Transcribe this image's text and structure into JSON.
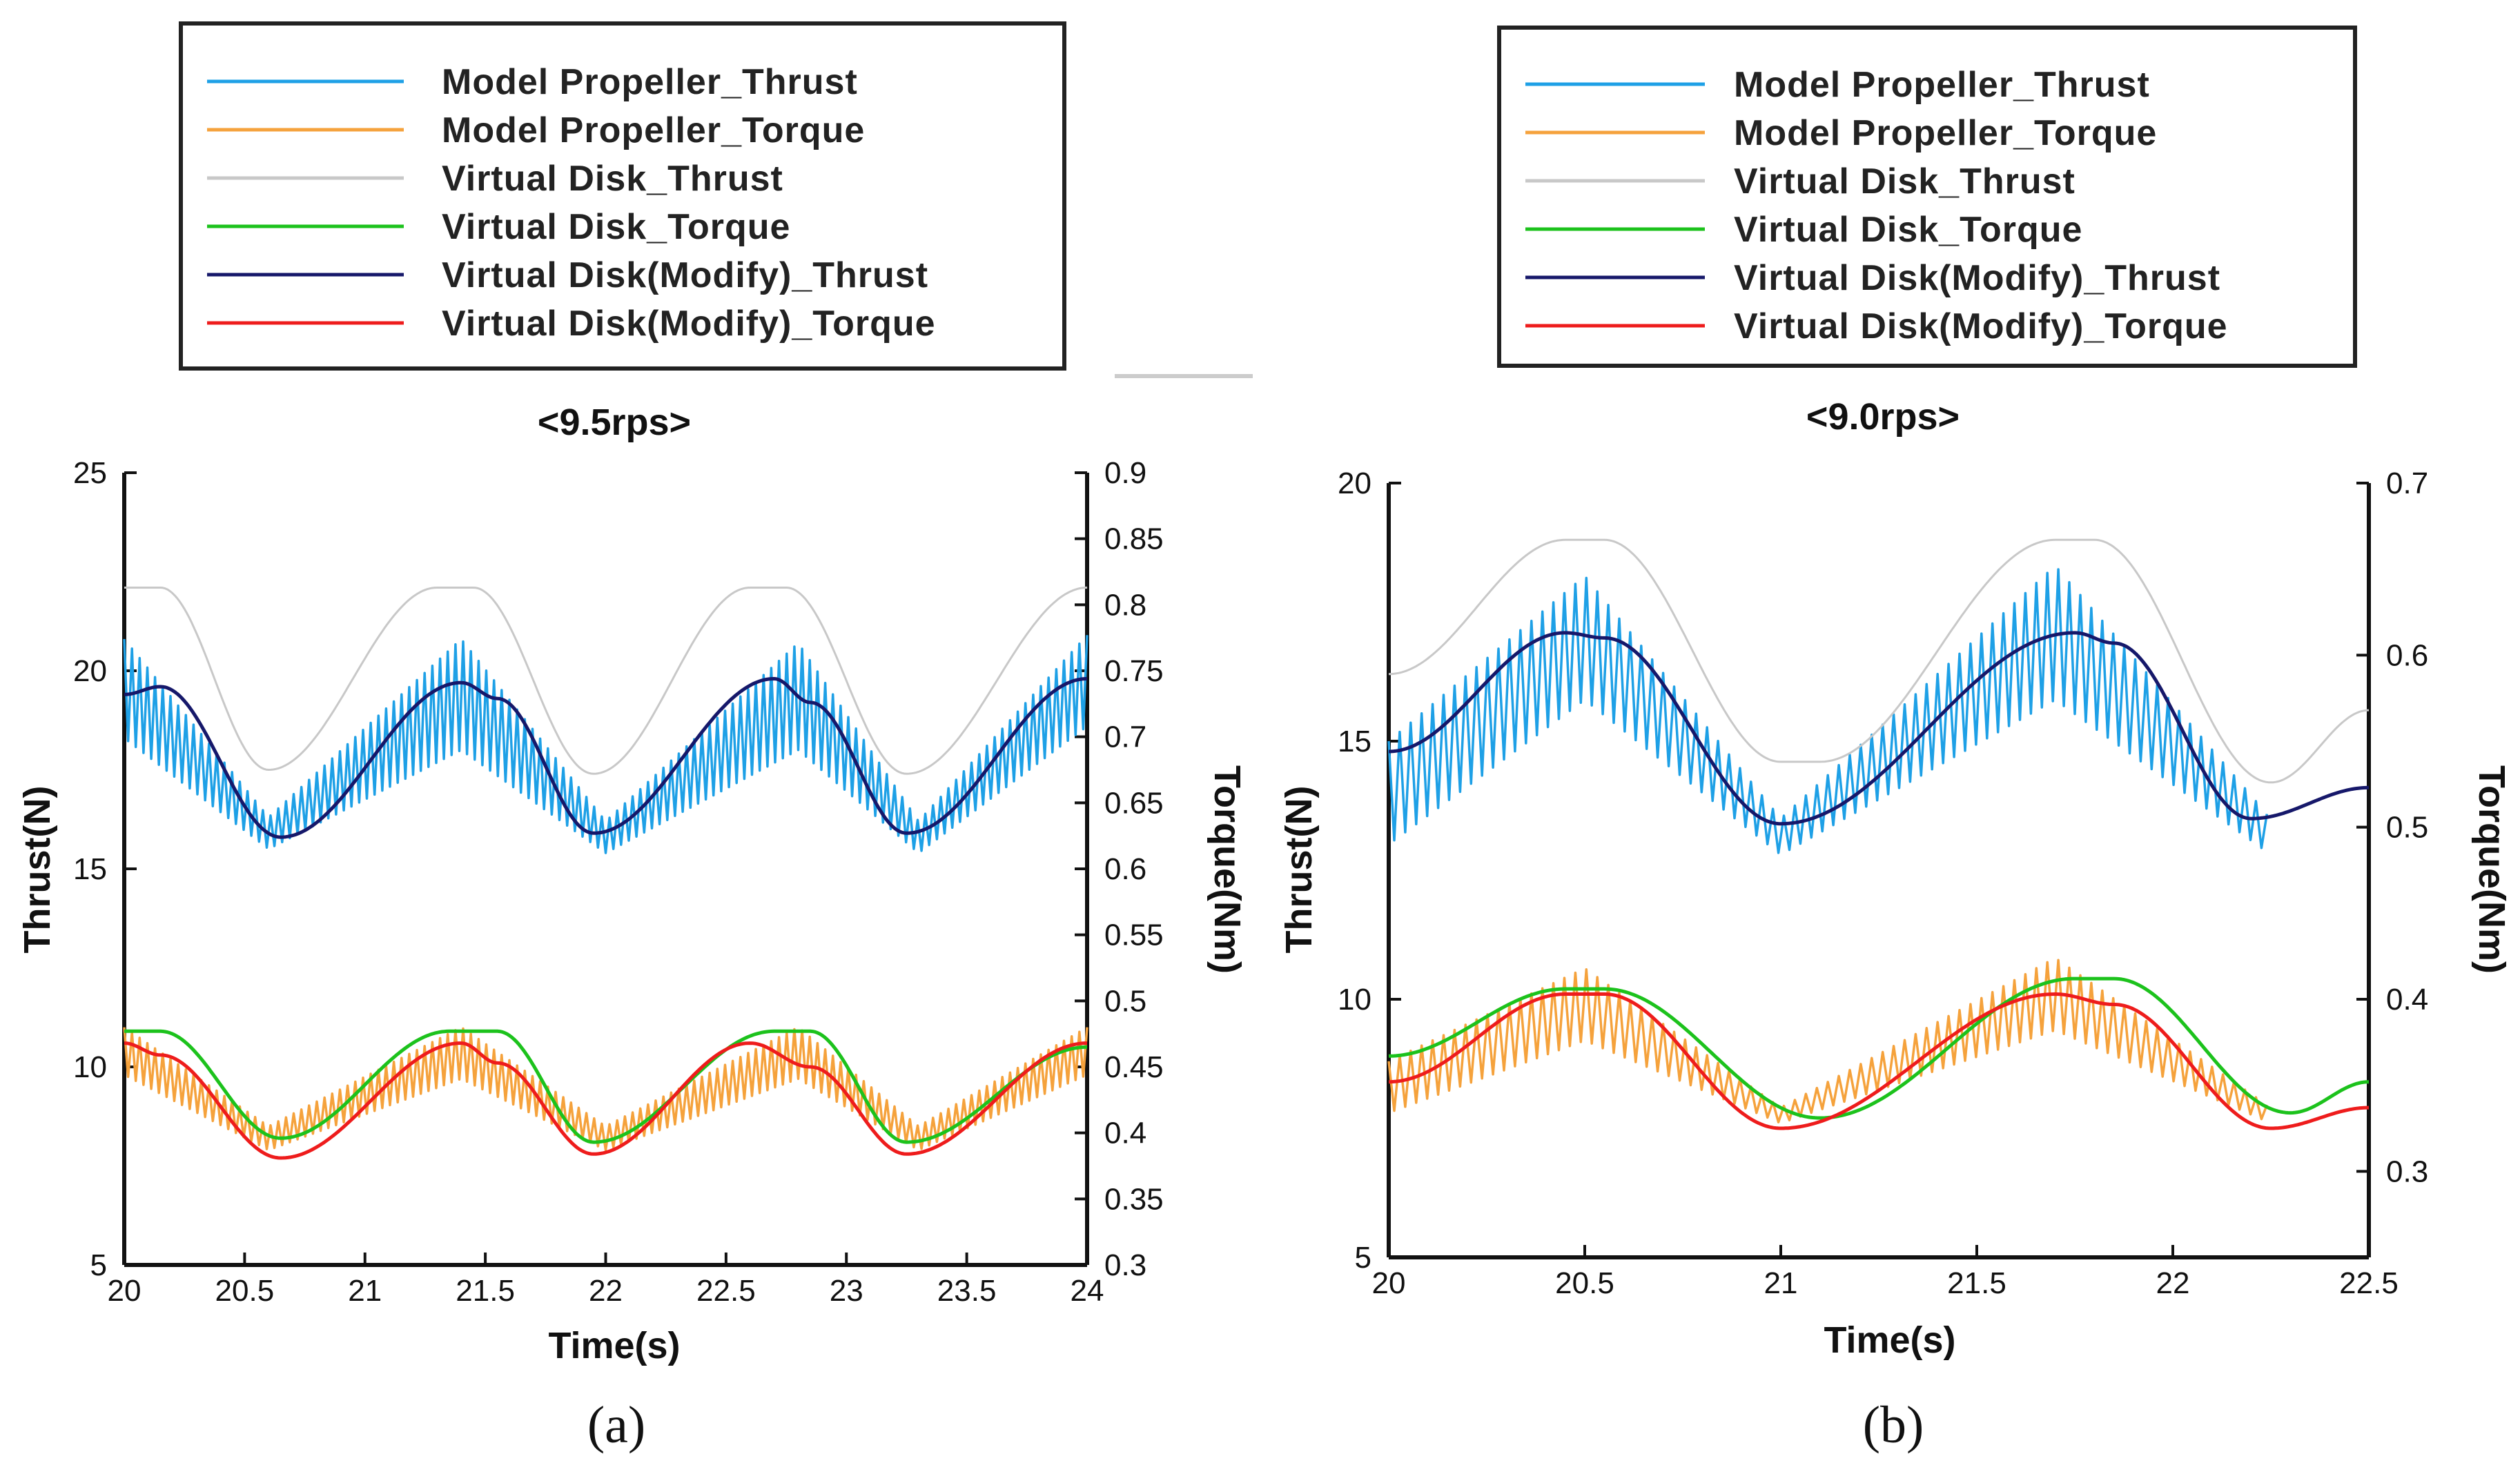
{
  "chart_data": [
    {
      "id": "a",
      "type": "line",
      "title": "<9.5rps>",
      "caption": "(a)",
      "xlabel": "Time(s)",
      "ylabel": "Thrust(N)",
      "y2label": "Torque(Nm)",
      "xlim": [
        20,
        24
      ],
      "ylim": [
        5,
        25
      ],
      "y2lim": [
        0.3,
        0.9
      ],
      "xticks": [
        "20",
        "20.5",
        "21",
        "21.5",
        "22",
        "22.5",
        "23",
        "23.5",
        "24"
      ],
      "yticks": [
        "5",
        "10",
        "15",
        "20",
        "25"
      ],
      "y2ticks": [
        "0.3",
        "0.35",
        "0.4",
        "0.45",
        "0.5",
        "0.55",
        "0.6",
        "0.65",
        "0.7",
        "0.75",
        "0.8",
        "0.85",
        "0.9"
      ],
      "legend": [
        {
          "name": "Model Propeller_Thrust",
          "color": "#1ea0e6"
        },
        {
          "name": "Model Propeller_Torque",
          "color": "#f5a23c"
        },
        {
          "name": "Virtual Disk_Thrust",
          "color": "#c8c8c8"
        },
        {
          "name": "Virtual Disk_Torque",
          "color": "#1cc21c"
        },
        {
          "name": "Virtual Disk(Modify)_Thrust",
          "color": "#16186a"
        },
        {
          "name": "Virtual Disk(Modify)_Torque",
          "color": "#ee1c1c"
        }
      ],
      "series": [
        {
          "name": "Model Propeller_Thrust",
          "axis": "left",
          "color": "#1ea0e6",
          "x": [
            20.0,
            20.6,
            21.4,
            22.0,
            22.8,
            23.3,
            24.0
          ],
          "lower": [
            18.3,
            15.5,
            18.0,
            15.4,
            18.0,
            15.4,
            18.6
          ],
          "upper": [
            20.8,
            16.3,
            20.8,
            16.2,
            20.7,
            16.2,
            20.9
          ]
        },
        {
          "name": "Model Propeller_Torque",
          "axis": "left",
          "color": "#f5a23c",
          "x": [
            20.0,
            20.6,
            21.4,
            22.0,
            22.8,
            23.3,
            24.0
          ],
          "lower": [
            9.8,
            7.9,
            9.7,
            7.9,
            9.7,
            7.9,
            9.8
          ],
          "upper": [
            11.0,
            8.5,
            11.0,
            8.5,
            11.0,
            8.5,
            11.0
          ]
        },
        {
          "name": "Virtual Disk_Thrust",
          "axis": "left",
          "color": "#c8c8c8",
          "x": [
            20.0,
            20.15,
            20.6,
            21.3,
            21.45,
            21.95,
            22.6,
            22.75,
            23.25,
            24.0
          ],
          "y": [
            22.1,
            22.1,
            17.5,
            22.1,
            22.1,
            17.4,
            22.1,
            22.1,
            17.4,
            22.1
          ]
        },
        {
          "name": "Virtual Disk_Torque",
          "axis": "left",
          "color": "#1cc21c",
          "x": [
            20.0,
            20.15,
            20.65,
            21.35,
            21.55,
            21.95,
            22.7,
            22.85,
            23.25,
            24.0
          ],
          "y": [
            10.9,
            10.9,
            8.2,
            10.9,
            10.9,
            8.1,
            10.9,
            10.9,
            8.1,
            10.5
          ]
        },
        {
          "name": "Virtual Disk(Modify)_Thrust",
          "axis": "left",
          "color": "#16186a",
          "x": [
            20.0,
            20.15,
            20.65,
            21.4,
            21.55,
            21.95,
            22.7,
            22.85,
            23.25,
            24.0
          ],
          "y": [
            19.4,
            19.6,
            15.8,
            19.7,
            19.3,
            15.9,
            19.8,
            19.2,
            15.9,
            19.8
          ]
        },
        {
          "name": "Virtual Disk(Modify)_Torque",
          "axis": "left",
          "color": "#ee1c1c",
          "x": [
            20.0,
            20.15,
            20.65,
            21.4,
            21.55,
            21.95,
            22.6,
            22.85,
            23.25,
            24.0
          ],
          "y": [
            10.6,
            10.3,
            7.7,
            10.6,
            10.1,
            7.8,
            10.6,
            10.0,
            7.8,
            10.6
          ]
        }
      ]
    },
    {
      "id": "b",
      "type": "line",
      "title": "<9.0rps>",
      "caption": "(b)",
      "xlabel": "Time(s)",
      "ylabel": "Thrust(N)",
      "y2label": "Torque(Nm)",
      "xlim": [
        20,
        22.5
      ],
      "ylim": [
        5,
        20
      ],
      "y2lim": [
        0.25,
        0.7
      ],
      "xticks": [
        "20",
        "20.5",
        "21",
        "21.5",
        "22",
        "22.5"
      ],
      "yticks": [
        "5",
        "10",
        "15",
        "20"
      ],
      "y2ticks": [
        "0.3",
        "0.4",
        "0.5",
        "0.6",
        "0.7"
      ],
      "legend": [
        {
          "name": "Model Propeller_Thrust",
          "color": "#1ea0e6"
        },
        {
          "name": "Model Propeller_Torque",
          "color": "#f5a23c"
        },
        {
          "name": "Virtual Disk_Thrust",
          "color": "#c8c8c8"
        },
        {
          "name": "Virtual Disk_Torque",
          "color": "#1cc21c"
        },
        {
          "name": "Virtual Disk(Modify)_Thrust",
          "color": "#16186a"
        },
        {
          "name": "Virtual Disk(Modify)_Torque",
          "color": "#ee1c1c"
        }
      ],
      "series": [
        {
          "name": "Model Propeller_Thrust",
          "axis": "left",
          "color": "#1ea0e6",
          "x": [
            20.0,
            20.5,
            21.0,
            21.7,
            22.25
          ],
          "lower": [
            13.0,
            15.8,
            12.8,
            15.8,
            12.8
          ],
          "upper": [
            15.0,
            18.2,
            13.5,
            18.4,
            13.5
          ]
        },
        {
          "name": "Model Propeller_Torque",
          "axis": "left",
          "color": "#f5a23c",
          "x": [
            20.0,
            20.5,
            21.0,
            21.7,
            22.25
          ],
          "lower": [
            7.8,
            9.2,
            7.6,
            9.4,
            7.6
          ],
          "upper": [
            8.8,
            10.6,
            7.9,
            10.8,
            7.9
          ]
        },
        {
          "name": "Virtual Disk_Thrust",
          "axis": "left",
          "color": "#c8c8c8",
          "x": [
            20.0,
            20.45,
            20.55,
            21.0,
            21.1,
            21.7,
            21.8,
            22.25,
            22.5
          ],
          "y": [
            16.3,
            18.9,
            18.9,
            14.6,
            14.6,
            18.9,
            18.9,
            14.2,
            15.6
          ]
        },
        {
          "name": "Virtual Disk_Torque",
          "axis": "left",
          "color": "#1cc21c",
          "x": [
            20.0,
            20.45,
            20.55,
            21.1,
            21.75,
            21.85,
            22.3,
            22.5
          ],
          "y": [
            8.9,
            10.2,
            10.2,
            7.7,
            10.4,
            10.4,
            7.8,
            8.4
          ]
        },
        {
          "name": "Virtual Disk(Modify)_Thrust",
          "axis": "left",
          "color": "#16186a",
          "x": [
            20.0,
            20.45,
            20.55,
            21.0,
            21.75,
            21.85,
            22.2,
            22.5
          ],
          "y": [
            14.8,
            17.1,
            17.0,
            13.4,
            17.1,
            16.9,
            13.5,
            14.1
          ]
        },
        {
          "name": "Virtual Disk(Modify)_Torque",
          "axis": "left",
          "color": "#ee1c1c",
          "x": [
            20.0,
            20.45,
            20.55,
            21.0,
            21.7,
            21.85,
            22.25,
            22.5
          ],
          "y": [
            8.4,
            10.1,
            10.1,
            7.5,
            10.1,
            9.9,
            7.5,
            7.9
          ]
        }
      ]
    }
  ]
}
